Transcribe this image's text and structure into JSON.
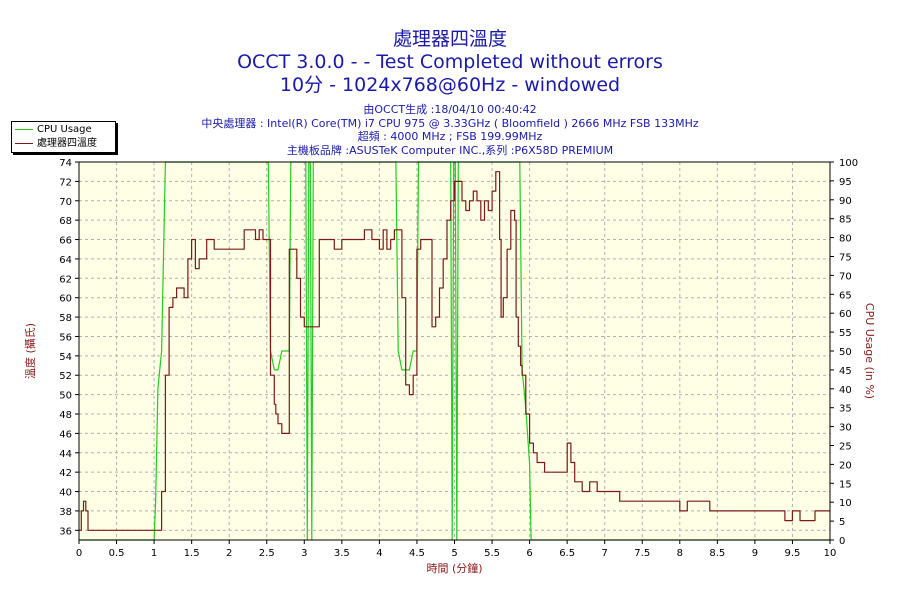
{
  "header": {
    "title": "處理器四溫度",
    "subtitle1": "OCCT 3.0.0 -  - Test Completed without errors",
    "subtitle2": "10分 - 1024x768@60Hz - windowed",
    "info": [
      "由OCCT生成 :18/04/10 00:40:42",
      "中央處理器 : Intel(R) Core(TM) i7 CPU 975 @ 3.33GHz ( Bloomfield ) 2666 MHz FSB 133MHz",
      "超頻 : 4000 MHz ; FSB 199.99MHz",
      "主機板品牌 :ASUSTeK Computer INC.,系列 :P6X58D PREMIUM"
    ]
  },
  "legend": {
    "cpu_usage": "CPU Usage",
    "temperature": "處理器四溫度"
  },
  "colors": {
    "cpu_usage": "#22cc22",
    "temperature": "#7a1a1a",
    "title": "#1a1aa6",
    "axis_title": "#8b1a1a",
    "plot_bg": "#ffffe6",
    "grid": "#b0b0b0"
  },
  "chart_data": {
    "type": "line",
    "title": "處理器四溫度",
    "xlabel": "時間 (分鐘)",
    "ylabel": "溫度 (攝氏)",
    "y2label": "CPU Usage (in %)",
    "xlim": [
      0,
      10
    ],
    "ylim": [
      35,
      74
    ],
    "y2lim": [
      0,
      100
    ],
    "grid": true,
    "legend_position": "top-left",
    "x_ticks": [
      "0",
      "0.5",
      "1",
      "1.5",
      "2",
      "2.5",
      "3",
      "3.5",
      "4",
      "4.5",
      "5",
      "5.5",
      "6",
      "6.5",
      "7",
      "7.5",
      "8",
      "8.5",
      "9",
      "9.5",
      "10"
    ],
    "y_ticks": [
      "36",
      "38",
      "40",
      "42",
      "44",
      "46",
      "48",
      "50",
      "52",
      "54",
      "56",
      "58",
      "60",
      "62",
      "64",
      "66",
      "68",
      "70",
      "72",
      "74"
    ],
    "y2_ticks": [
      "0",
      "5",
      "10",
      "15",
      "20",
      "25",
      "30",
      "35",
      "40",
      "45",
      "50",
      "55",
      "60",
      "65",
      "70",
      "75",
      "80",
      "85",
      "90",
      "95",
      "100"
    ],
    "series": [
      {
        "name": "處理器四溫度",
        "axis": "left",
        "x": [
          0,
          0.03,
          0.06,
          0.09,
          0.12,
          0.15,
          1.0,
          1.05,
          1.1,
          1.15,
          1.2,
          1.25,
          1.3,
          1.35,
          1.4,
          1.45,
          1.5,
          1.55,
          1.6,
          1.7,
          1.8,
          2.0,
          2.1,
          2.2,
          2.3,
          2.35,
          2.4,
          2.45,
          2.5,
          2.55,
          2.6,
          2.62,
          2.65,
          2.7,
          2.75,
          2.8,
          2.85,
          2.9,
          2.95,
          3.0,
          3.05,
          3.1,
          3.2,
          3.3,
          3.4,
          3.5,
          3.6,
          3.7,
          3.8,
          3.9,
          4.0,
          4.05,
          4.1,
          4.15,
          4.2,
          4.3,
          4.35,
          4.4,
          4.45,
          4.5,
          4.55,
          4.6,
          4.7,
          4.75,
          4.8,
          4.85,
          4.9,
          4.95,
          5.0,
          5.05,
          5.1,
          5.15,
          5.2,
          5.25,
          5.3,
          5.35,
          5.4,
          5.45,
          5.5,
          5.55,
          5.6,
          5.62,
          5.65,
          5.7,
          5.75,
          5.8,
          5.82,
          5.85,
          5.88,
          5.9,
          5.95,
          6.0,
          6.05,
          6.1,
          6.2,
          6.3,
          6.4,
          6.5,
          6.55,
          6.6,
          6.7,
          6.8,
          6.9,
          7.0,
          7.1,
          7.2,
          7.5,
          7.7,
          7.8,
          8.0,
          8.1,
          8.3,
          8.4,
          8.6,
          8.8,
          9.0,
          9.1,
          9.2,
          9.3,
          9.4,
          9.5,
          9.6,
          9.7,
          9.8,
          10.0
        ],
        "values": [
          36,
          38,
          39,
          38,
          36,
          36,
          36,
          36,
          40,
          52,
          59,
          60,
          61,
          61,
          60,
          64,
          66,
          63,
          64,
          66,
          65,
          65,
          65,
          67,
          67,
          66,
          67,
          66,
          66,
          52,
          49,
          48,
          47,
          46,
          46,
          65,
          65,
          62,
          58,
          57,
          57,
          57,
          66,
          66,
          65,
          66,
          66,
          66,
          67,
          66,
          65,
          67,
          65,
          66,
          67,
          60,
          51,
          50,
          52,
          65,
          66,
          66,
          57,
          58,
          61,
          64,
          68,
          70,
          72,
          72,
          70,
          69,
          70,
          71,
          70,
          68,
          70,
          69,
          71,
          73,
          66,
          58,
          60,
          65,
          69,
          68,
          58,
          55,
          53,
          52,
          48,
          45,
          44,
          43,
          42,
          42,
          42,
          45,
          43,
          41,
          40,
          41,
          40,
          40,
          40,
          39,
          39,
          39,
          39,
          38,
          39,
          39,
          38,
          38,
          38,
          38,
          38,
          38,
          38,
          37,
          38,
          37,
          37,
          38,
          38
        ]
      },
      {
        "name": "CPU Usage",
        "axis": "right",
        "x": [
          0,
          1.0,
          1.02,
          1.05,
          1.1,
          1.15,
          1.17,
          1.2,
          1.22,
          2.5,
          2.52,
          2.55,
          2.6,
          2.65,
          2.7,
          2.75,
          2.8,
          2.82,
          2.85,
          3.02,
          3.04,
          3.06,
          3.08,
          3.1,
          3.12,
          4.2,
          4.22,
          4.25,
          4.3,
          4.35,
          4.4,
          4.45,
          4.5,
          4.52,
          4.55,
          4.95,
          4.97,
          4.99,
          5.01,
          5.03,
          5.05,
          5.85,
          5.87,
          5.9,
          5.95,
          6.0,
          6.02,
          6.05,
          10.0
        ],
        "values": [
          0,
          0,
          10,
          40,
          50,
          100,
          100,
          100,
          100,
          100,
          100,
          50,
          45,
          45,
          50,
          50,
          50,
          100,
          100,
          100,
          0,
          100,
          100,
          0,
          100,
          100,
          100,
          50,
          45,
          45,
          45,
          50,
          50,
          100,
          100,
          100,
          0,
          100,
          100,
          0,
          100,
          100,
          100,
          45,
          35,
          20,
          0,
          0,
          0
        ]
      }
    ]
  }
}
